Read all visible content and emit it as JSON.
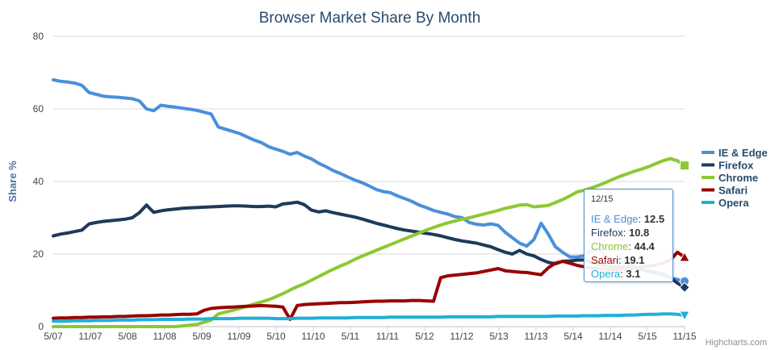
{
  "chart_data": {
    "type": "line",
    "title": "Browser Market Share By Month",
    "xlabel": "",
    "ylabel": "Share %",
    "ylim": [
      0,
      80
    ],
    "yticks": [
      0,
      20,
      40,
      60,
      80
    ],
    "xticks": [
      "5/07",
      "11/07",
      "5/08",
      "11/08",
      "5/09",
      "11/09",
      "5/10",
      "11/10",
      "5/11",
      "11/11",
      "5/12",
      "11/12",
      "5/13",
      "11/13",
      "5/14",
      "11/14",
      "5/15",
      "11/15"
    ],
    "grid": true,
    "legend_position": "right",
    "series": [
      {
        "name": "IE & Edge",
        "color": "#4a90d9",
        "marker": "circle",
        "values": [
          68,
          67.6,
          67.4,
          67.1,
          66.5,
          64.5,
          64,
          63.5,
          63.3,
          63.2,
          63,
          62.8,
          62.2,
          60,
          59.5,
          61,
          60.7,
          60.5,
          60.2,
          59.9,
          59.6,
          59.1,
          58.6,
          55,
          54.4,
          53.8,
          53.2,
          52.3,
          51.4,
          50.7,
          49.6,
          48.9,
          48.3,
          47.5,
          48,
          47,
          46.2,
          45,
          44.1,
          43,
          42.2,
          41.3,
          40.4,
          39.7,
          38.8,
          37.8,
          37.2,
          36.9,
          36,
          35.3,
          34.5,
          33.5,
          32.8,
          32,
          31.5,
          31,
          30.3,
          30,
          28.7,
          28.2,
          28,
          28.3,
          27.9,
          26,
          24.5,
          23,
          22.2,
          24,
          28.5,
          25.5,
          22,
          20.5,
          19.2,
          19.2,
          19.5,
          21,
          21.5,
          19.1,
          18.6,
          17.8,
          17.3,
          16.6,
          15.9,
          15,
          14.6,
          14,
          13.4,
          13,
          12.5
        ]
      },
      {
        "name": "Firefox",
        "color": "#1d3a5a",
        "marker": "diamond",
        "values": [
          25,
          25.5,
          25.8,
          26.2,
          26.6,
          28.3,
          28.7,
          29,
          29.2,
          29.4,
          29.6,
          30,
          31.4,
          33.5,
          31.5,
          31.9,
          32.2,
          32.4,
          32.6,
          32.7,
          32.8,
          32.9,
          33,
          33.1,
          33.2,
          33.3,
          33.3,
          33.2,
          33.1,
          33.1,
          33.2,
          33,
          33.8,
          34,
          34.3,
          33.6,
          32.1,
          31.6,
          31.9,
          31.4,
          31,
          30.6,
          30.2,
          29.7,
          29.1,
          28.5,
          28,
          27.5,
          27,
          26.6,
          26.3,
          26,
          25.7,
          25.4,
          25,
          24.5,
          24,
          23.6,
          23.3,
          23,
          22.5,
          22,
          21.2,
          20.5,
          20,
          21,
          20,
          19.5,
          18.5,
          17.7,
          17.3,
          18,
          18.1,
          18.3,
          18.4,
          17.6,
          17.2,
          16.8,
          16.5,
          16.5,
          16.3,
          16.1,
          15.7,
          15.3,
          14.9,
          14.5,
          13.5,
          12,
          10.8
        ]
      },
      {
        "name": "Chrome",
        "color": "#8cc832",
        "marker": "square",
        "values": [
          0,
          0,
          0,
          0,
          0,
          0,
          0,
          0,
          0,
          0,
          0,
          0,
          0,
          0,
          0,
          0,
          0,
          0,
          0.2,
          0.4,
          0.6,
          1.2,
          1.8,
          3.5,
          4,
          4.5,
          5,
          5.6,
          6.2,
          6.8,
          7.4,
          8.2,
          9.1,
          10.1,
          11,
          11.8,
          12.8,
          13.8,
          14.8,
          15.8,
          16.7,
          17.5,
          18.5,
          19.4,
          20.2,
          21,
          21.8,
          22.6,
          23.4,
          24.2,
          25,
          25.8,
          26.6,
          27.3,
          28,
          28.6,
          29.1,
          29.6,
          30,
          30.5,
          31,
          31.5,
          32,
          32.6,
          33,
          33.5,
          33.6,
          33,
          33.2,
          33.4,
          34.2,
          35,
          36,
          37.1,
          37.6,
          38.2,
          38.9,
          39.7,
          40.6,
          41.4,
          42.1,
          42.8,
          43.4,
          44.1,
          44.9,
          45.7,
          46.3,
          45.7,
          44.4
        ]
      },
      {
        "name": "Safari",
        "color": "#990000",
        "marker": "triangle",
        "values": [
          2.3,
          2.4,
          2.4,
          2.5,
          2.5,
          2.6,
          2.6,
          2.7,
          2.7,
          2.8,
          2.8,
          2.9,
          3,
          3,
          3.1,
          3.2,
          3.2,
          3.3,
          3.4,
          3.4,
          3.5,
          4.5,
          5,
          5.2,
          5.3,
          5.4,
          5.5,
          5.6,
          5.7,
          5.8,
          5.7,
          5.6,
          5.4,
          2,
          5.8,
          6.1,
          6.2,
          6.3,
          6.4,
          6.5,
          6.6,
          6.6,
          6.7,
          6.8,
          6.9,
          7,
          7,
          7.1,
          7.1,
          7.1,
          7.2,
          7.2,
          7.1,
          7,
          13.5,
          14,
          14.2,
          14.4,
          14.6,
          14.8,
          15.2,
          15.6,
          16,
          15.4,
          15.2,
          15,
          14.9,
          14.6,
          14.3,
          16.2,
          17.5,
          18,
          17.5,
          16.9,
          16.5,
          16.2,
          16,
          15.8,
          15.7,
          15.8,
          16,
          16.2,
          16.4,
          16.7,
          17,
          17.5,
          18.3,
          20.5,
          19.1
        ]
      },
      {
        "name": "Opera",
        "color": "#1fb0d8",
        "marker": "triangle-down",
        "values": [
          1.5,
          1.5,
          1.5,
          1.6,
          1.6,
          1.6,
          1.7,
          1.7,
          1.7,
          1.8,
          1.8,
          1.8,
          1.9,
          1.9,
          1.9,
          2,
          2,
          2,
          2,
          2.1,
          2.1,
          2.1,
          2.2,
          2.2,
          2.2,
          2.2,
          2.3,
          2.3,
          2.3,
          2.3,
          2.3,
          2.2,
          2.2,
          2.2,
          2.3,
          2.3,
          2.3,
          2.4,
          2.4,
          2.4,
          2.4,
          2.4,
          2.5,
          2.5,
          2.5,
          2.5,
          2.5,
          2.6,
          2.6,
          2.6,
          2.6,
          2.6,
          2.6,
          2.6,
          2.6,
          2.7,
          2.7,
          2.7,
          2.7,
          2.7,
          2.7,
          2.7,
          2.8,
          2.8,
          2.8,
          2.8,
          2.8,
          2.8,
          2.8,
          2.8,
          2.9,
          2.9,
          2.9,
          2.9,
          3,
          3,
          3,
          3.1,
          3.1,
          3.1,
          3.2,
          3.2,
          3.3,
          3.4,
          3.4,
          3.5,
          3.5,
          3.4,
          3.1
        ]
      }
    ]
  },
  "tooltip": {
    "date": "12/15",
    "rows": [
      {
        "name": "IE & Edge",
        "value": "12.5",
        "color": "#4a90d9"
      },
      {
        "name": "Firefox",
        "value": "10.8",
        "color": "#1d3a5a"
      },
      {
        "name": "Chrome",
        "value": "44.4",
        "color": "#8cc832"
      },
      {
        "name": "Safari",
        "value": "19.1",
        "color": "#990000"
      },
      {
        "name": "Opera",
        "value": "3.1",
        "color": "#1fb0d8"
      }
    ]
  },
  "credits": "Highcharts.com"
}
